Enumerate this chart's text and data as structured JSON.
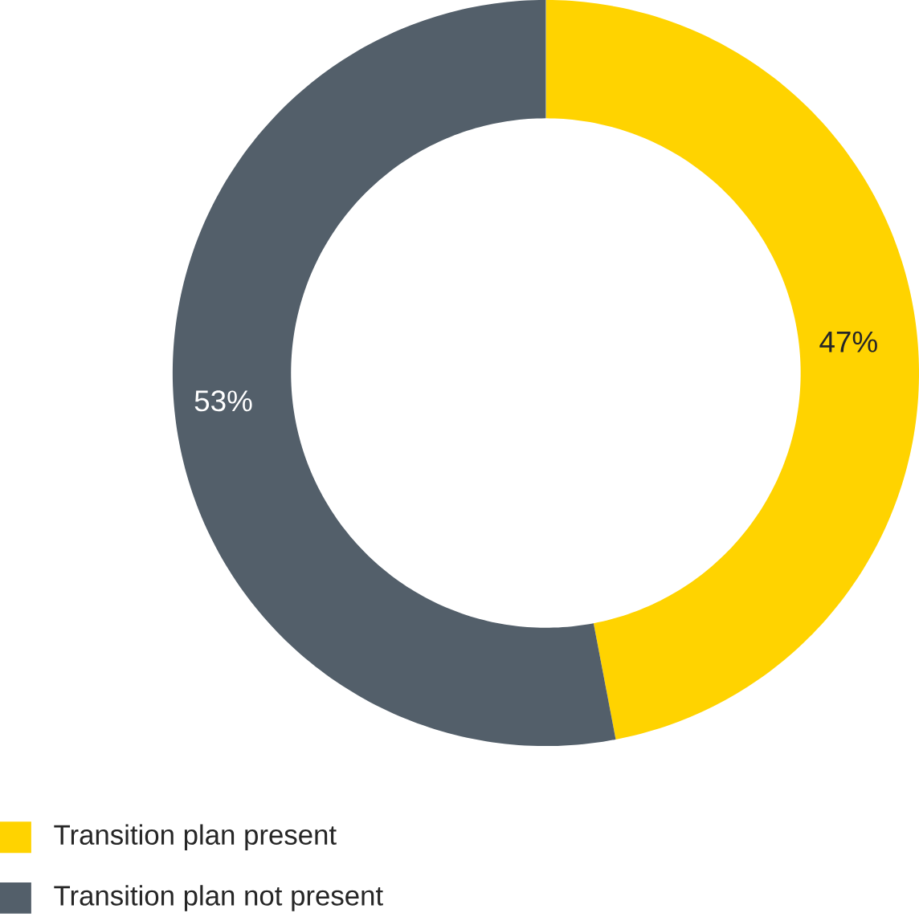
{
  "chart_data": {
    "type": "donut",
    "categories": [
      "Transition plan present",
      "Transition plan not present"
    ],
    "values": [
      47,
      53
    ],
    "value_labels": [
      "47%",
      "53%"
    ],
    "colors": [
      "#ffd300",
      "#535f6a"
    ],
    "legend": "bottom left"
  }
}
